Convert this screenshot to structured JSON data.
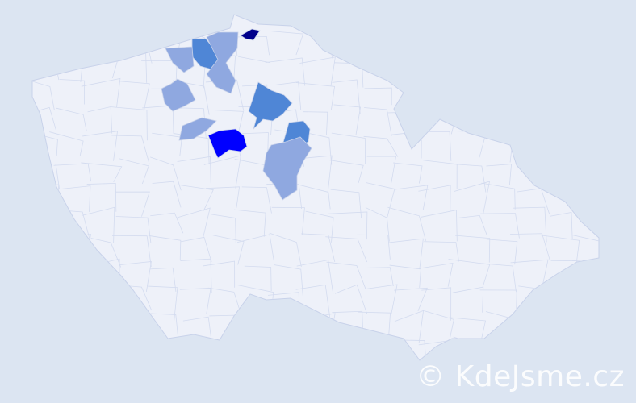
{
  "map": {
    "background": "#dce5f2",
    "base_fill": "#eef1f9",
    "border_color": "#c8d2ea",
    "highlighted_regions": [
      {
        "level": "darkest",
        "color": "#00008b"
      },
      {
        "level": "highest",
        "color": "#0000ff"
      },
      {
        "level": "medium",
        "color": "#4f86d6"
      },
      {
        "level": "medium",
        "color": "#4f86d6"
      },
      {
        "level": "medium",
        "color": "#4f86d6"
      },
      {
        "level": "low",
        "color": "#8fa8e0"
      },
      {
        "level": "low",
        "color": "#8fa8e0"
      },
      {
        "level": "low",
        "color": "#8fa8e0"
      },
      {
        "level": "low",
        "color": "#8fa8e0"
      }
    ]
  },
  "watermark": "© KdeJsme.cz"
}
